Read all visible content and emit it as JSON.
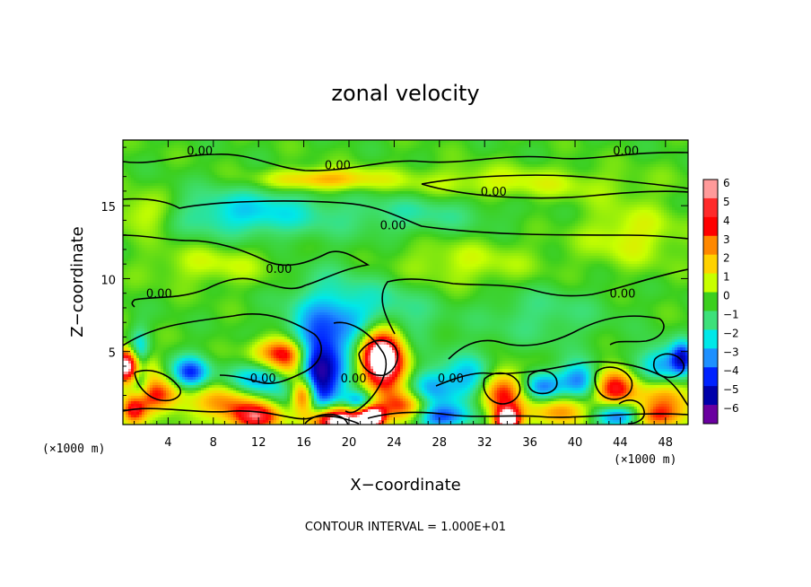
{
  "chart_data": {
    "type": "heatmap",
    "title": "zonal velocity",
    "xlabel": "X−coordinate",
    "ylabel": "Z−coordinate",
    "x_unit_left": "(×1000 m)",
    "x_unit_right": "(×1000 m)",
    "xlim": [
      0,
      50
    ],
    "ylim": [
      0,
      19.5
    ],
    "x_ticks": [
      "4",
      "8",
      "12",
      "16",
      "20",
      "24",
      "28",
      "32",
      "36",
      "40",
      "44",
      "48"
    ],
    "x_tick_values": [
      4,
      8,
      12,
      16,
      20,
      24,
      28,
      32,
      36,
      40,
      44,
      48
    ],
    "y_ticks": [
      "5",
      "10",
      "15"
    ],
    "y_tick_values": [
      5,
      10,
      15
    ],
    "colorbar": {
      "labels": [
        "6",
        "5",
        "4",
        "3",
        "2",
        "1",
        "0",
        "−1",
        "−2",
        "−3",
        "−4",
        "−5",
        "−6"
      ],
      "values": [
        6,
        5,
        4,
        3,
        2,
        1,
        0,
        -1,
        -2,
        -3,
        -4,
        -5,
        -6
      ],
      "colors": [
        "#ff9a9a",
        "#ff2a2a",
        "#ff0000",
        "#ff8800",
        "#ffd200",
        "#c8ff00",
        "#3ccf1e",
        "#3de07a",
        "#00e8e8",
        "#1e90ff",
        "#0022ff",
        "#0000aa",
        "#6a00a0"
      ]
    },
    "contour_labels": [
      {
        "text": "0.00",
        "x": 6.8,
        "y": 18.8
      },
      {
        "text": "0.00",
        "x": 19.0,
        "y": 17.8
      },
      {
        "text": "0.00",
        "x": 44.5,
        "y": 18.8
      },
      {
        "text": "0.00",
        "x": 32.8,
        "y": 16.0
      },
      {
        "text": "0.00",
        "x": 23.9,
        "y": 13.7
      },
      {
        "text": "0.00",
        "x": 13.8,
        "y": 10.7
      },
      {
        "text": "0.00",
        "x": 3.2,
        "y": 9.0
      },
      {
        "text": "0.00",
        "x": 44.2,
        "y": 9.0
      },
      {
        "text": "0.00",
        "x": 12.4,
        "y": 3.2
      },
      {
        "text": "0.00",
        "x": 20.4,
        "y": 3.2
      },
      {
        "text": "0.00",
        "x": 29.0,
        "y": 3.2
      }
    ],
    "features": [
      {
        "x": 17.5,
        "z": 16.8,
        "v": 2.5,
        "sx": 3.5,
        "sz": 0.5
      },
      {
        "x": 33,
        "z": 16.5,
        "v": 1.2,
        "sx": 8,
        "sz": 0.8
      },
      {
        "x": 11,
        "z": 14.5,
        "v": -2.2,
        "sx": 5,
        "sz": 1.2
      },
      {
        "x": 26,
        "z": 14.5,
        "v": -1.2,
        "sx": 5,
        "sz": 1.1
      },
      {
        "x": 2,
        "z": 14.5,
        "v": 1.5,
        "sx": 2,
        "sz": 1
      },
      {
        "x": 45,
        "z": 13,
        "v": 1.3,
        "sx": 3,
        "sz": 1.5
      },
      {
        "x": 30,
        "z": 11,
        "v": 1.0,
        "sx": 5,
        "sz": 1.2
      },
      {
        "x": 8,
        "z": 11,
        "v": 1.0,
        "sx": 4,
        "sz": 1
      },
      {
        "x": 18,
        "z": 6.5,
        "v": -2.5,
        "sx": 2.5,
        "sz": 2.5
      },
      {
        "x": 23,
        "z": 7,
        "v": -1.8,
        "sx": 3,
        "sz": 2
      },
      {
        "x": 37,
        "z": 7.5,
        "v": -1.0,
        "sx": 4,
        "sz": 1.5
      },
      {
        "x": 14,
        "z": 5,
        "v": 3.5,
        "sx": 1.8,
        "sz": 0.7
      },
      {
        "x": 15,
        "z": 4,
        "v": 4.0,
        "sx": 1.2,
        "sz": 1.0
      },
      {
        "x": 22.8,
        "z": 5,
        "v": 6.5,
        "sx": 1.4,
        "sz": 1.3
      },
      {
        "x": 23.3,
        "z": 3.5,
        "v": 3.5,
        "sx": 1.5,
        "sz": 1.5
      },
      {
        "x": 17,
        "z": 3,
        "v": -5.5,
        "sx": 1.5,
        "sz": 2
      },
      {
        "x": 16,
        "z": 2,
        "v": 6.5,
        "sx": 0.8,
        "sz": 0.9
      },
      {
        "x": 0.5,
        "z": 4,
        "v": 7,
        "sx": 1.2,
        "sz": 0.8
      },
      {
        "x": 1.5,
        "z": 4,
        "v": -4,
        "sx": 0.6,
        "sz": 1.5
      },
      {
        "x": 6,
        "z": 3.5,
        "v": -4,
        "sx": 1.2,
        "sz": 0.8
      },
      {
        "x": 3,
        "z": 2,
        "v": 4,
        "sx": 1.5,
        "sz": 0.8
      },
      {
        "x": 1,
        "z": 1,
        "v": 4,
        "sx": 0.8,
        "sz": 0.7
      },
      {
        "x": 9,
        "z": 1.5,
        "v": 3,
        "sx": 2,
        "sz": 1
      },
      {
        "x": 12,
        "z": 0.5,
        "v": 4.5,
        "sx": 1.5,
        "sz": 0.7
      },
      {
        "x": 12,
        "z": 3,
        "v": -3,
        "sx": 2,
        "sz": 0.8
      },
      {
        "x": 19,
        "z": 0.3,
        "v": 8,
        "sx": 1.8,
        "sz": 0.7
      },
      {
        "x": 22,
        "z": 0.5,
        "v": 7,
        "sx": 0.8,
        "sz": 0.6
      },
      {
        "x": 21,
        "z": 1.5,
        "v": -4,
        "sx": 1,
        "sz": 0.6
      },
      {
        "x": 25,
        "z": 1.2,
        "v": 3.5,
        "sx": 1.5,
        "sz": 0.8
      },
      {
        "x": 27,
        "z": 2.5,
        "v": -3,
        "sx": 1.5,
        "sz": 1
      },
      {
        "x": 28,
        "z": 0.5,
        "v": -3.5,
        "sx": 2,
        "sz": 0.6
      },
      {
        "x": 31,
        "z": 3,
        "v": -3,
        "sx": 1.5,
        "sz": 1.2
      },
      {
        "x": 33.5,
        "z": 2.2,
        "v": 4.5,
        "sx": 1.5,
        "sz": 1.1
      },
      {
        "x": 34,
        "z": 0.3,
        "v": 7,
        "sx": 0.8,
        "sz": 0.6
      },
      {
        "x": 37,
        "z": 2.5,
        "v": -3.5,
        "sx": 1.3,
        "sz": 0.8
      },
      {
        "x": 38.5,
        "z": 1,
        "v": 3,
        "sx": 1.8,
        "sz": 0.8
      },
      {
        "x": 40.5,
        "z": 3,
        "v": -3.5,
        "sx": 1.2,
        "sz": 0.9
      },
      {
        "x": 43.5,
        "z": 2.5,
        "v": 4.5,
        "sx": 1.3,
        "sz": 1.0
      },
      {
        "x": 44,
        "z": 0.6,
        "v": -4,
        "sx": 1.5,
        "sz": 0.6
      },
      {
        "x": 47.5,
        "z": 4,
        "v": -3,
        "sx": 1.5,
        "sz": 1
      },
      {
        "x": 48,
        "z": 2,
        "v": 3,
        "sx": 1.5,
        "sz": 1
      },
      {
        "x": 49.5,
        "z": 4.5,
        "v": -4,
        "sx": 0.7,
        "sz": 0.8
      },
      {
        "x": 47,
        "z": 0.5,
        "v": 3.5,
        "sx": 1.5,
        "sz": 0.6
      }
    ]
  },
  "footer_note": "CONTOUR INTERVAL = 1.000E+01"
}
